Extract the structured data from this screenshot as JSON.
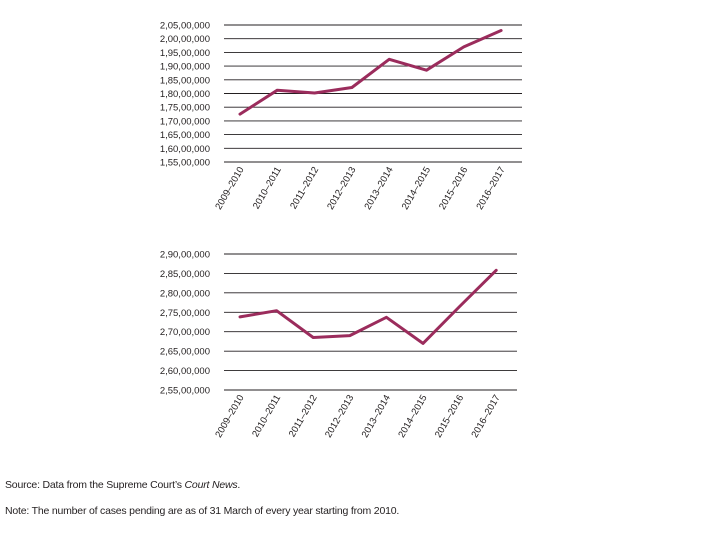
{
  "chart_data": [
    {
      "type": "line",
      "categories": [
        "2009–2010",
        "2010–2011",
        "2011–2012",
        "2012–2013",
        "2013–2014",
        "2014–2015",
        "2015–2016",
        "2016–2017"
      ],
      "yticks": [
        "1,55,00,000",
        "1,60,00,000",
        "1,65,00,000",
        "1,70,00,000",
        "1,75,00,000",
        "1,80,00,000",
        "1,85,00,000",
        "1,90,00,000",
        "1,95,00,000",
        "2,00,00,000",
        "2,05,00,000"
      ],
      "ylim": [
        15500000,
        20500000
      ],
      "grid": true,
      "series": [
        {
          "values": [
            17250000,
            18120000,
            18020000,
            18220000,
            19250000,
            18850000,
            19700000,
            20300000
          ]
        }
      ],
      "color": "#9b2c5c"
    },
    {
      "type": "line",
      "categories": [
        "2009–2010",
        "2010–2011",
        "2011–2012",
        "2012–2013",
        "2013–2014",
        "2014–2015",
        "2015–2016",
        "2016–2017"
      ],
      "yticks": [
        "2,55,00,000",
        "2,60,00,000",
        "2,65,00,000",
        "2,70,00,000",
        "2,75,00,000",
        "2,80,00,000",
        "2,85,00,000",
        "2,90,00,000"
      ],
      "ylim": [
        25500000,
        29000000
      ],
      "grid": true,
      "series": [
        {
          "values": [
            27380000,
            27540000,
            26850000,
            26900000,
            27370000,
            26700000,
            27650000,
            28580000
          ]
        }
      ],
      "color": "#9b2c5c"
    }
  ],
  "footer": {
    "source_prefix": "Source: Data from the Supreme Court’s ",
    "source_italic": "Court News",
    "source_suffix": ".",
    "note": "Note: The number of cases pending are as of 31 March of every year starting from 2010."
  }
}
